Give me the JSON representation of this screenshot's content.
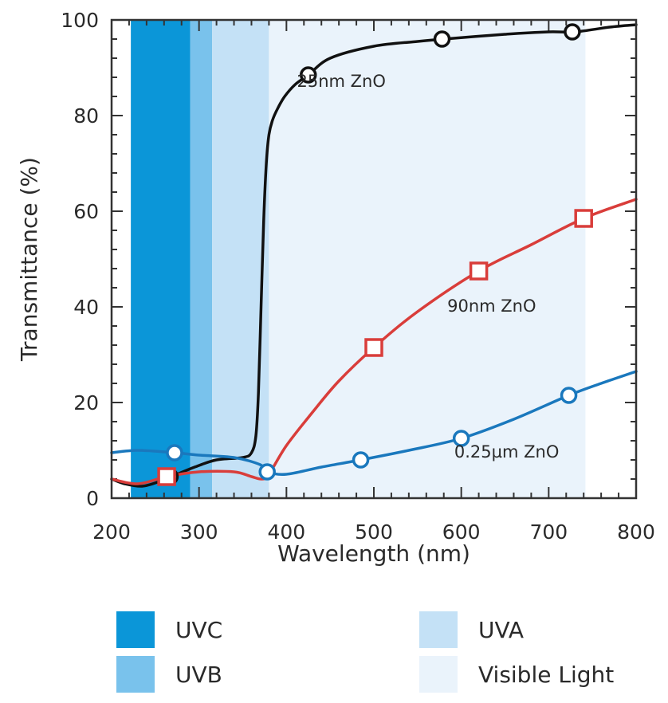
{
  "chart_data": {
    "type": "line",
    "xlabel": "Wavelength (nm)",
    "ylabel": "Transmittance (%)",
    "xlim": [
      200,
      800
    ],
    "ylim": [
      0,
      100
    ],
    "x_ticks": [
      "200",
      "300",
      "400",
      "500",
      "600",
      "700",
      "800"
    ],
    "y_ticks": [
      "0",
      "20",
      "40",
      "60",
      "80",
      "100"
    ],
    "bands": [
      {
        "name": "UVC",
        "x_start": 222,
        "x_end": 290,
        "color": "#0b96d8"
      },
      {
        "name": "UVB",
        "x_start": 290,
        "x_end": 315,
        "color": "#79c2ec"
      },
      {
        "name": "UVA",
        "x_start": 315,
        "x_end": 380,
        "color": "#c4e1f6"
      },
      {
        "name": "Visible Light",
        "x_start": 380,
        "x_end": 742,
        "color": "#eaf3fb"
      }
    ],
    "series": [
      {
        "name": "25nm ZnO",
        "color": "#111111",
        "marker": "circle",
        "label_x": 412,
        "label_y": 86,
        "x": [
          200,
          215,
          235,
          255,
          275,
          295,
          320,
          350,
          360,
          365,
          368,
          371,
          374,
          377,
          380,
          384,
          390,
          398,
          410,
          425,
          450,
          500,
          550,
          580,
          650,
          700,
          730,
          770,
          800
        ],
        "y": [
          4,
          3,
          2.5,
          3.5,
          5,
          6.5,
          8,
          8.5,
          9.5,
          13,
          22,
          40,
          58,
          70,
          76,
          79,
          81.5,
          84,
          86.5,
          88.5,
          92,
          94.5,
          95.5,
          96,
          97,
          97.5,
          97.5,
          98.5,
          99
        ],
        "markers_x": [
          267,
          425,
          578,
          727
        ],
        "markers_y": [
          4.5,
          88.5,
          96,
          97.5
        ]
      },
      {
        "name": "90nm ZnO",
        "color": "#d93d3a",
        "marker": "square",
        "label_x": 584,
        "label_y": 39,
        "x": [
          200,
          230,
          263,
          300,
          340,
          360,
          372,
          380,
          400,
          430,
          460,
          500,
          550,
          620,
          680,
          740,
          800
        ],
        "y": [
          4,
          3,
          4.5,
          5.5,
          5.5,
          4.5,
          4,
          5,
          11,
          18,
          24.5,
          31.5,
          39,
          47.5,
          53,
          58.5,
          62.5
        ],
        "markers_x": [
          263,
          500,
          620,
          740
        ],
        "markers_y": [
          4.5,
          31.5,
          47.5,
          58.5
        ]
      },
      {
        "name": "0.25µm ZnO",
        "color": "#1a78bd",
        "marker": "circle",
        "label_x": 592,
        "label_y": 8.5,
        "x": [
          200,
          230,
          272,
          300,
          340,
          370,
          378,
          400,
          440,
          485,
          540,
          600,
          660,
          723,
          760,
          800
        ],
        "y": [
          9.5,
          10,
          9.5,
          9,
          8.5,
          7,
          5.5,
          5,
          6.5,
          8,
          10,
          12.5,
          16.5,
          21.5,
          24,
          26.5
        ],
        "markers_x": [
          272,
          378,
          485,
          600,
          723
        ],
        "markers_y": [
          9.5,
          5.5,
          8,
          12.5,
          21.5
        ]
      }
    ],
    "legend": [
      {
        "label": "UVC",
        "color": "#0b96d8"
      },
      {
        "label": "UVB",
        "color": "#79c2ec"
      },
      {
        "label": "UVA",
        "color": "#c4e1f6"
      },
      {
        "label": "Visible Light",
        "color": "#eaf3fb"
      }
    ],
    "legend_placement": "bottom",
    "grid": false
  }
}
